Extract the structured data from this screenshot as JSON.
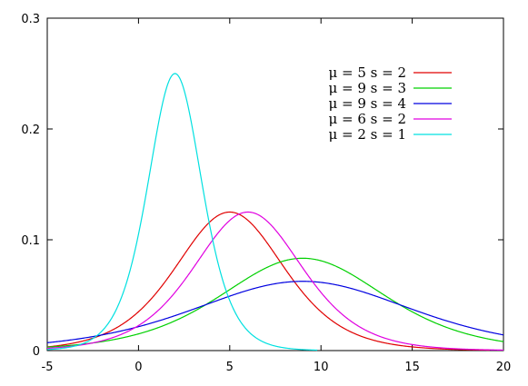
{
  "chart_data": {
    "type": "line",
    "function": "logistic_pdf",
    "xlim": [
      -5,
      20
    ],
    "ylim": [
      0,
      0.3
    ],
    "xticks": [
      -5,
      0,
      5,
      10,
      15,
      20
    ],
    "yticks": [
      0,
      0.1,
      0.2,
      0.3
    ],
    "xtick_labels": [
      "-5",
      "0",
      "5",
      "10",
      "15",
      "20"
    ],
    "ytick_labels": [
      "0",
      "0.1",
      "0.2",
      "0.3"
    ],
    "legend_position": "top-right",
    "grid": false,
    "series": [
      {
        "name": "μ = 5 s = 2",
        "mu": 5,
        "s": 2,
        "color": "#e00000"
      },
      {
        "name": "μ = 9 s = 3",
        "mu": 9,
        "s": 3,
        "color": "#00d000"
      },
      {
        "name": "μ = 9 s = 4",
        "mu": 9,
        "s": 4,
        "color": "#0000e0"
      },
      {
        "name": "μ = 6 s = 2",
        "mu": 6,
        "s": 2,
        "color": "#e000e0"
      },
      {
        "name": "μ = 2 s = 1",
        "mu": 2,
        "s": 1,
        "color": "#00e0e0"
      }
    ]
  }
}
